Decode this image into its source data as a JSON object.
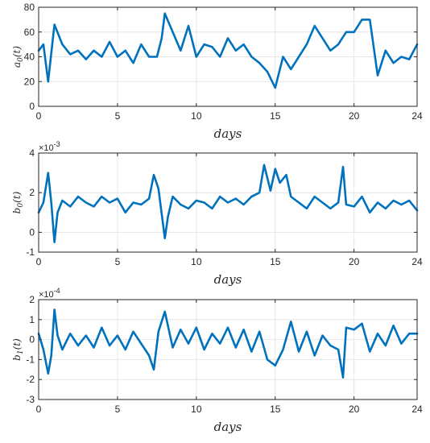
{
  "colors": {
    "series": "#0072BD",
    "axis": "#262626",
    "grid": "#e6e6e6"
  },
  "chart_data": [
    {
      "type": "line",
      "ylabel": "a_0(t)",
      "xlabel": "days",
      "xlim": [
        0,
        24
      ],
      "ylim": [
        0,
        80
      ],
      "xticks": [
        0,
        5,
        10,
        15,
        20,
        24
      ],
      "yticks": [
        0,
        20,
        40,
        60,
        80
      ],
      "ytick_labels": [
        "0",
        "20",
        "40",
        "60",
        "80"
      ],
      "exponent_label": "",
      "grid": true,
      "series": [
        {
          "x": [
            0,
            0.3,
            0.6,
            1.0,
            1.5,
            2.0,
            2.5,
            3.0,
            3.5,
            4.0,
            4.5,
            5.0,
            5.5,
            6.0,
            6.5,
            7.0,
            7.5,
            7.8,
            8.0,
            8.5,
            9.0,
            9.5,
            10.0,
            10.5,
            11.0,
            11.5,
            12.0,
            12.5,
            13.0,
            13.5,
            14.0,
            14.5,
            15.0,
            15.5,
            16.0,
            16.5,
            17.0,
            17.5,
            18.0,
            18.5,
            19.0,
            19.5,
            20.0,
            20.5,
            21.0,
            21.5,
            22.0,
            22.5,
            23.0,
            23.5,
            24.0
          ],
          "y": [
            45,
            50,
            20,
            66,
            50,
            42,
            45,
            38,
            45,
            40,
            52,
            40,
            45,
            35,
            50,
            40,
            40,
            55,
            75,
            60,
            45,
            65,
            40,
            50,
            48,
            40,
            55,
            45,
            50,
            40,
            35,
            28,
            15,
            40,
            30,
            40,
            50,
            65,
            55,
            45,
            50,
            60,
            60,
            70,
            70,
            25,
            45,
            35,
            40,
            38,
            50
          ]
        }
      ]
    },
    {
      "type": "line",
      "ylabel": "b_0(t)",
      "xlabel": "days",
      "xlim": [
        0,
        24
      ],
      "ylim": [
        -1,
        4
      ],
      "xticks": [
        0,
        5,
        10,
        15,
        20,
        24
      ],
      "yticks": [
        -1,
        0,
        2,
        4
      ],
      "ytick_labels": [
        "-1",
        "0",
        "2",
        "4"
      ],
      "exponent_label": "×10^-3",
      "grid": true,
      "series": [
        {
          "x": [
            0,
            0.3,
            0.6,
            0.8,
            1.0,
            1.2,
            1.5,
            2.0,
            2.5,
            3.0,
            3.5,
            4.0,
            4.5,
            5.0,
            5.5,
            6.0,
            6.5,
            7.0,
            7.3,
            7.6,
            8.0,
            8.2,
            8.5,
            9.0,
            9.5,
            10.0,
            10.5,
            11.0,
            11.5,
            12.0,
            12.5,
            13.0,
            13.5,
            14.0,
            14.3,
            14.7,
            15.0,
            15.3,
            15.7,
            16.0,
            16.5,
            17.0,
            17.5,
            18.0,
            18.5,
            19.0,
            19.3,
            19.5,
            20.0,
            20.5,
            21.0,
            21.5,
            22.0,
            22.5,
            23.0,
            23.5,
            24.0
          ],
          "y": [
            1.0,
            1.5,
            3.0,
            1.5,
            -0.5,
            1.0,
            1.6,
            1.3,
            1.8,
            1.5,
            1.3,
            1.8,
            1.5,
            1.7,
            1.0,
            1.5,
            1.4,
            1.7,
            2.9,
            2.2,
            -0.3,
            0.8,
            1.8,
            1.4,
            1.2,
            1.6,
            1.5,
            1.2,
            1.8,
            1.5,
            1.7,
            1.4,
            1.8,
            2.0,
            3.4,
            2.1,
            3.2,
            2.5,
            2.9,
            1.8,
            1.5,
            1.2,
            1.8,
            1.5,
            1.2,
            1.5,
            3.3,
            1.4,
            1.3,
            1.8,
            1.0,
            1.5,
            1.2,
            1.6,
            1.4,
            1.6,
            1.1
          ]
        }
      ]
    },
    {
      "type": "line",
      "ylabel": "b_1(t)",
      "xlabel": "days",
      "xlim": [
        0,
        24
      ],
      "ylim": [
        -3,
        2
      ],
      "xticks": [
        0,
        5,
        10,
        15,
        20,
        24
      ],
      "yticks": [
        -3,
        -2,
        -1,
        0,
        1,
        2
      ],
      "ytick_labels": [
        "-3",
        "-2",
        "-1",
        "0",
        "1",
        "2"
      ],
      "exponent_label": "×10^-4",
      "grid": true,
      "series": [
        {
          "x": [
            0,
            0.3,
            0.6,
            0.8,
            1.0,
            1.2,
            1.5,
            2.0,
            2.5,
            3.0,
            3.5,
            4.0,
            4.5,
            5.0,
            5.5,
            6.0,
            6.5,
            7.0,
            7.3,
            7.6,
            8.0,
            8.5,
            9.0,
            9.5,
            10.0,
            10.5,
            11.0,
            11.5,
            12.0,
            12.5,
            13.0,
            13.5,
            14.0,
            14.5,
            15.0,
            15.5,
            16.0,
            16.5,
            17.0,
            17.5,
            18.0,
            18.5,
            19.0,
            19.3,
            19.5,
            20.0,
            20.5,
            21.0,
            21.5,
            22.0,
            22.5,
            23.0,
            23.5,
            24.0
          ],
          "y": [
            0.3,
            -0.5,
            -1.7,
            -0.8,
            1.5,
            0.2,
            -0.5,
            0.3,
            -0.3,
            0.2,
            -0.4,
            0.6,
            -0.3,
            0.2,
            -0.5,
            0.4,
            -0.2,
            -0.8,
            -1.5,
            0.4,
            1.4,
            -0.4,
            0.5,
            -0.2,
            0.6,
            -0.5,
            0.3,
            -0.2,
            0.6,
            -0.4,
            0.5,
            -0.6,
            0.4,
            -1.0,
            -1.3,
            -0.5,
            0.9,
            -0.6,
            0.4,
            -0.8,
            0.2,
            -0.3,
            -0.5,
            -1.9,
            0.6,
            0.5,
            0.8,
            -0.6,
            0.3,
            -0.3,
            0.7,
            -0.2,
            0.3,
            0.3
          ]
        }
      ]
    }
  ]
}
